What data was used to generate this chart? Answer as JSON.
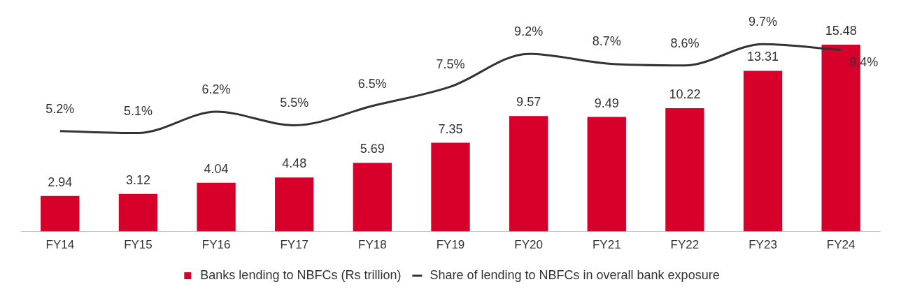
{
  "chart_data": {
    "type": "bar",
    "categories": [
      "FY14",
      "FY15",
      "FY16",
      "FY17",
      "FY18",
      "FY19",
      "FY20",
      "FY21",
      "FY22",
      "FY23",
      "FY24"
    ],
    "series": [
      {
        "name": "Banks lending to NBFCs (Rs trillion)",
        "color": "#d6002a",
        "values": [
          2.94,
          3.12,
          4.04,
          4.48,
          5.69,
          7.35,
          9.57,
          9.49,
          10.22,
          13.31,
          15.48
        ],
        "value_labels": [
          "2.94",
          "3.12",
          "4.04",
          "4.48",
          "5.69",
          "7.35",
          "9.57",
          "9.49",
          "10.22",
          "13.31",
          "15.48"
        ]
      },
      {
        "name": "Share of lending to NBFCs in overall bank exposure",
        "type": "line",
        "axis": "y2",
        "color": "#333333",
        "values": [
          5.2,
          5.1,
          6.2,
          5.5,
          6.5,
          7.5,
          9.2,
          8.7,
          8.6,
          9.7,
          9.4
        ],
        "value_labels": [
          "5.2%",
          "5.1%",
          "6.2%",
          "5.5%",
          "6.5%",
          "7.5%",
          "9.2%",
          "8.7%",
          "8.6%",
          "9.7%",
          "9.4%"
        ]
      }
    ],
    "legend": "bottom",
    "grid": false,
    "marker": "none",
    "line_style": "solid"
  }
}
